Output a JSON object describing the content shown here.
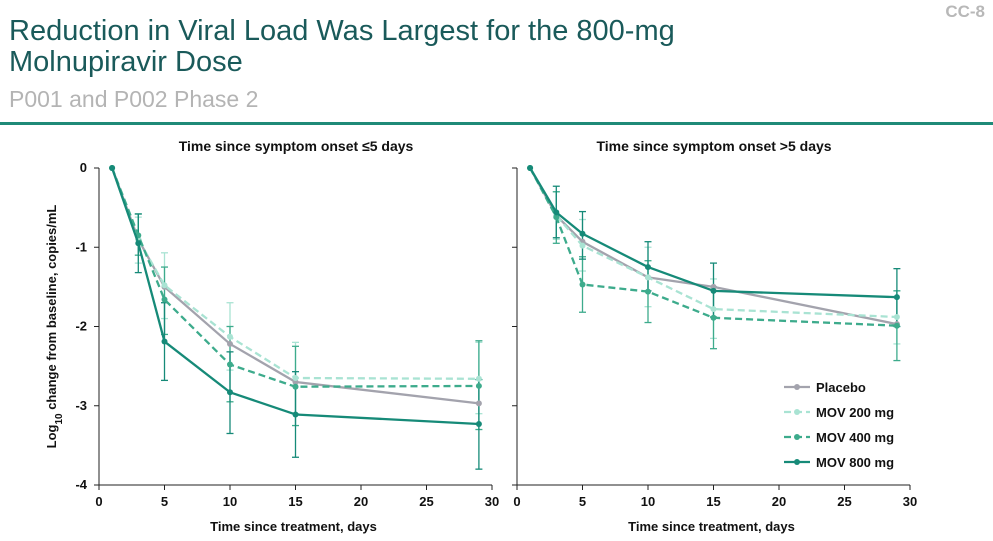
{
  "slide_id": "CC-8",
  "title_line1": "Reduction in Viral Load Was Largest for the 800-mg",
  "title_line2": "Molnupiravir Dose",
  "subtitle": "P001 and P002 Phase 2",
  "colors": {
    "placebo": "#a3a3ad",
    "mov200": "#a9e3d3",
    "mov400": "#3dab8c",
    "mov800": "#168a78",
    "rule": "#1f8a78",
    "title": "#1a5a5a"
  },
  "legend": [
    {
      "key": "placebo",
      "label": "Placebo",
      "dashed": false
    },
    {
      "key": "mov200",
      "label": "MOV 200 mg",
      "dashed": true
    },
    {
      "key": "mov400",
      "label": "MOV 400 mg",
      "dashed": true
    },
    {
      "key": "mov800",
      "label": "MOV 800 mg",
      "dashed": false
    }
  ],
  "chart_data": [
    {
      "type": "line",
      "title": "Time since symptom onset ≤5 days",
      "xlabel": "Time since treatment, days",
      "ylabel": "Log10 change from baseline, copies/mL",
      "xlim": [
        0,
        30
      ],
      "ylim": [
        -4,
        0
      ],
      "x_ticks": [
        0,
        5,
        10,
        15,
        20,
        25,
        30
      ],
      "y_ticks": [
        0,
        -1,
        -2,
        -3,
        -4
      ],
      "series": [
        {
          "key": "placebo",
          "name": "Placebo",
          "points": [
            {
              "x": 1,
              "y": 0
            },
            {
              "x": 3,
              "y": -0.9
            },
            {
              "x": 5,
              "y": -1.5
            },
            {
              "x": 10,
              "y": -2.22
            },
            {
              "x": 15,
              "y": -2.7
            },
            {
              "x": 29,
              "y": -2.97
            }
          ]
        },
        {
          "key": "mov200",
          "name": "MOV 200 mg",
          "points": [
            {
              "x": 1,
              "y": 0
            },
            {
              "x": 3,
              "y": -0.9
            },
            {
              "x": 5,
              "y": -1.48
            },
            {
              "x": 10,
              "y": -2.13
            },
            {
              "x": 15,
              "y": -2.65
            },
            {
              "x": 29,
              "y": -2.66
            }
          ],
          "errors": [
            {
              "x": 3,
              "lo": -1.2,
              "hi": -0.62
            },
            {
              "x": 5,
              "lo": -1.9,
              "hi": -1.07
            },
            {
              "x": 10,
              "lo": -2.55,
              "hi": -1.7
            },
            {
              "x": 15,
              "lo": -3.1,
              "hi": -2.2
            },
            {
              "x": 29,
              "lo": -3.1,
              "hi": -2.2
            }
          ]
        },
        {
          "key": "mov400",
          "name": "MOV 400 mg",
          "points": [
            {
              "x": 1,
              "y": 0
            },
            {
              "x": 3,
              "y": -0.85
            },
            {
              "x": 5,
              "y": -1.66
            },
            {
              "x": 10,
              "y": -2.48
            },
            {
              "x": 15,
              "y": -2.76
            },
            {
              "x": 29,
              "y": -2.75
            }
          ],
          "errors": [
            {
              "x": 3,
              "lo": -1.1,
              "hi": -0.58
            },
            {
              "x": 5,
              "lo": -2.1,
              "hi": -1.25
            },
            {
              "x": 10,
              "lo": -2.95,
              "hi": -2.0
            },
            {
              "x": 15,
              "lo": -3.25,
              "hi": -2.25
            },
            {
              "x": 29,
              "lo": -3.3,
              "hi": -2.18
            }
          ]
        },
        {
          "key": "mov800",
          "name": "MOV 800 mg",
          "points": [
            {
              "x": 1,
              "y": 0
            },
            {
              "x": 3,
              "y": -0.95
            },
            {
              "x": 5,
              "y": -2.19
            },
            {
              "x": 10,
              "y": -2.83
            },
            {
              "x": 15,
              "y": -3.11
            },
            {
              "x": 29,
              "y": -3.23
            }
          ],
          "errors": [
            {
              "x": 3,
              "lo": -1.32,
              "hi": -0.58
            },
            {
              "x": 5,
              "lo": -2.68,
              "hi": -1.7
            },
            {
              "x": 10,
              "lo": -3.35,
              "hi": -2.32
            },
            {
              "x": 15,
              "lo": -3.65,
              "hi": -2.57
            },
            {
              "x": 29,
              "lo": -3.8,
              "hi": -2.67
            }
          ]
        }
      ]
    },
    {
      "type": "line",
      "title": "Time since symptom onset >5 days",
      "xlabel": "Time since treatment, days",
      "ylabel": "",
      "xlim": [
        0,
        30
      ],
      "ylim": [
        -4,
        0
      ],
      "x_ticks": [
        0,
        5,
        10,
        15,
        20,
        25,
        30
      ],
      "y_ticks": [],
      "series": [
        {
          "key": "placebo",
          "name": "Placebo",
          "points": [
            {
              "x": 1,
              "y": 0
            },
            {
              "x": 3,
              "y": -0.6
            },
            {
              "x": 5,
              "y": -0.93
            },
            {
              "x": 10,
              "y": -1.38
            },
            {
              "x": 15,
              "y": -1.5
            },
            {
              "x": 29,
              "y": -1.97
            }
          ]
        },
        {
          "key": "mov200",
          "name": "MOV 200 mg",
          "points": [
            {
              "x": 1,
              "y": 0
            },
            {
              "x": 3,
              "y": -0.6
            },
            {
              "x": 5,
              "y": -0.98
            },
            {
              "x": 10,
              "y": -1.38
            },
            {
              "x": 15,
              "y": -1.78
            },
            {
              "x": 29,
              "y": -1.88
            }
          ],
          "errors": [
            {
              "x": 3,
              "lo": -0.9,
              "hi": -0.3
            },
            {
              "x": 5,
              "lo": -1.3,
              "hi": -0.65
            },
            {
              "x": 10,
              "lo": -1.75,
              "hi": -1.0
            },
            {
              "x": 15,
              "lo": -2.15,
              "hi": -1.4
            },
            {
              "x": 29,
              "lo": -2.22,
              "hi": -1.55
            }
          ]
        },
        {
          "key": "mov400",
          "name": "MOV 400 mg",
          "points": [
            {
              "x": 1,
              "y": 0
            },
            {
              "x": 3,
              "y": -0.62
            },
            {
              "x": 5,
              "y": -1.47
            },
            {
              "x": 10,
              "y": -1.56
            },
            {
              "x": 15,
              "y": -1.89
            },
            {
              "x": 29,
              "y": -1.99
            }
          ],
          "errors": [
            {
              "x": 3,
              "lo": -0.95,
              "hi": -0.3
            },
            {
              "x": 5,
              "lo": -1.82,
              "hi": -1.12
            },
            {
              "x": 10,
              "lo": -1.95,
              "hi": -1.17
            },
            {
              "x": 15,
              "lo": -2.28,
              "hi": -1.5
            },
            {
              "x": 29,
              "lo": -2.43,
              "hi": -1.55
            }
          ]
        },
        {
          "key": "mov800",
          "name": "MOV 800 mg",
          "points": [
            {
              "x": 1,
              "y": 0
            },
            {
              "x": 3,
              "y": -0.56
            },
            {
              "x": 5,
              "y": -0.83
            },
            {
              "x": 10,
              "y": -1.25
            },
            {
              "x": 15,
              "y": -1.55
            },
            {
              "x": 29,
              "y": -1.63
            }
          ],
          "errors": [
            {
              "x": 3,
              "lo": -0.88,
              "hi": -0.23
            },
            {
              "x": 5,
              "lo": -1.15,
              "hi": -0.55
            },
            {
              "x": 10,
              "lo": -1.55,
              "hi": -0.93
            },
            {
              "x": 15,
              "lo": -1.88,
              "hi": -1.2
            },
            {
              "x": 29,
              "lo": -2.0,
              "hi": -1.27
            }
          ]
        }
      ]
    }
  ]
}
